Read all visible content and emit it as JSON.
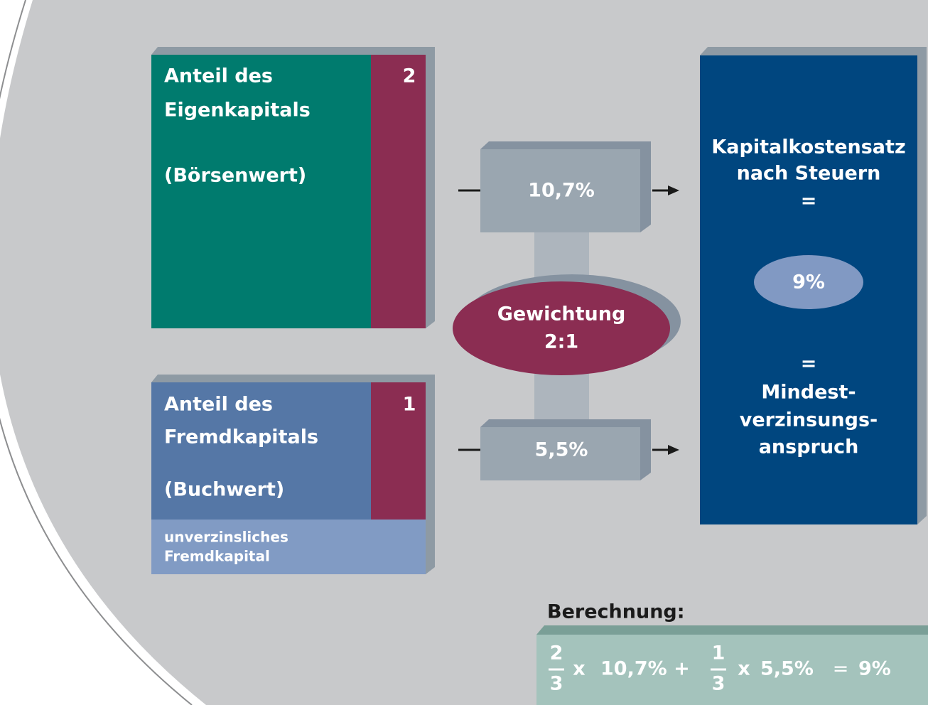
{
  "equity": {
    "title": [
      "Anteil des",
      "Eigenkapitals"
    ],
    "basis": "(Börsenwert)",
    "weight": "2"
  },
  "debt": {
    "title": [
      "Anteil des",
      "Fremdkapitals"
    ],
    "basis": "(Buchwert)",
    "weight": "1",
    "note": [
      "unverzinsliches",
      "Fremdkapital"
    ]
  },
  "equity_rate": "10,7%",
  "debt_rate": "5,5%",
  "weighting": [
    "Gewichtung",
    "2:1"
  ],
  "result": {
    "lines_top": [
      "Kapitalkostensatz",
      "nach Steuern",
      "="
    ],
    "value": "9%",
    "lines_bottom": [
      "=",
      "Mindest-",
      "verzinsungs-",
      "anspruch"
    ]
  },
  "calculation": {
    "label": "Berechnung:",
    "term1": {
      "numerator": "2",
      "denominator": "3",
      "times": "x",
      "rate": "10,7% +"
    },
    "term2": {
      "numerator": "1",
      "denominator": "3",
      "times": "x",
      "rate": "5,5%"
    },
    "equals": "=",
    "result": "9%"
  }
}
